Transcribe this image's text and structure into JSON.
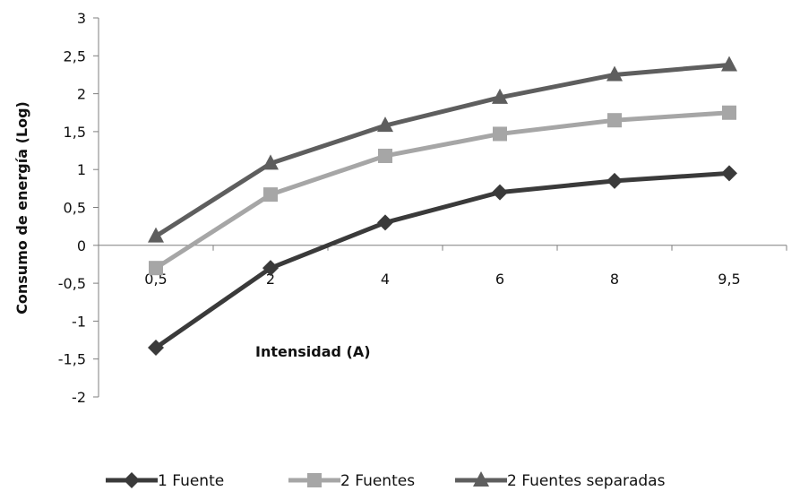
{
  "chart_data": {
    "type": "line",
    "categories": [
      "0,5",
      "2",
      "4",
      "6",
      "8",
      "9,5"
    ],
    "series": [
      {
        "name": "1 Fuente",
        "values": [
          -1.35,
          -0.3,
          0.3,
          0.7,
          0.85,
          0.95
        ],
        "color": "#3a3a3a",
        "marker": "diamond"
      },
      {
        "name": "2 Fuentes",
        "values": [
          -0.3,
          0.67,
          1.18,
          1.47,
          1.65,
          1.75
        ],
        "color": "#a6a6a6",
        "marker": "square"
      },
      {
        "name": "2 Fuentes separadas",
        "values": [
          0.12,
          1.08,
          1.58,
          1.95,
          2.25,
          2.38
        ],
        "color": "#5e5e5e",
        "marker": "triangle"
      }
    ],
    "xlabel": "Intensidad  (A)",
    "ylabel": "Consumo de energía (Log)",
    "ylim": [
      -2,
      3
    ],
    "yticks": [
      -2,
      -1.5,
      -1,
      -0.5,
      0,
      0.5,
      1,
      1.5,
      2,
      2.5,
      3
    ],
    "ytick_labels": [
      "-2",
      "-1,5",
      "-1",
      "-0,5",
      "0",
      "0,5",
      "1",
      "1,5",
      "2",
      "2,5",
      "3"
    ],
    "grid": false,
    "legend_position": "bottom"
  }
}
